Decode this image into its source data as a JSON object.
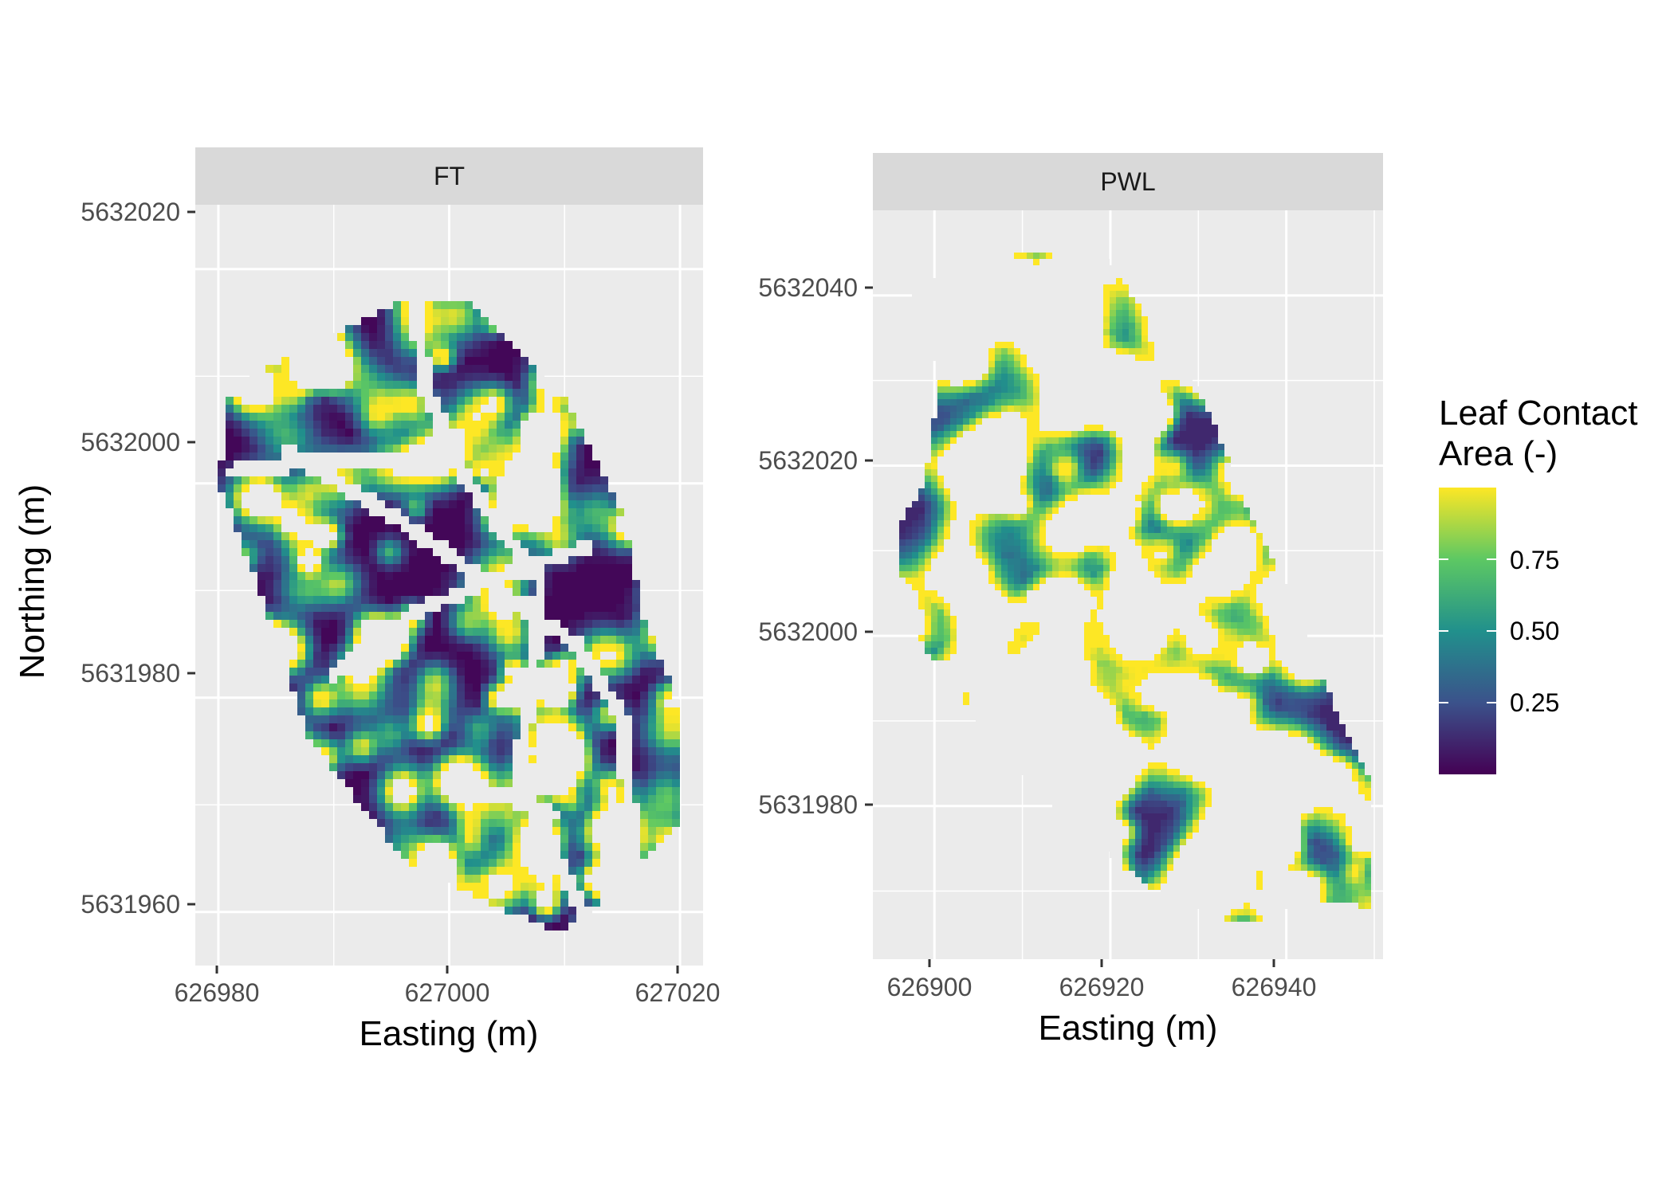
{
  "chart_data": [
    {
      "type": "heatmap",
      "panel": "FT",
      "xlabel": "Easting (m)",
      "ylabel": "Northing (m)",
      "x_ticks": [
        626980,
        627000,
        627020
      ],
      "y_ticks": [
        5631960,
        5631980,
        5632000,
        5632020
      ],
      "xlim": [
        626978,
        627022
      ],
      "ylim": [
        5631955,
        5632026
      ],
      "boundary": [
        [
          626996,
          5632017
        ],
        [
          627002,
          5632017
        ],
        [
          627010,
          5632008
        ],
        [
          627015,
          5631997
        ],
        [
          627017,
          5631987
        ],
        [
          627020,
          5631979
        ],
        [
          627020,
          5631968
        ],
        [
          627016,
          5631964
        ],
        [
          627010,
          5631958
        ],
        [
          627003,
          5631961
        ],
        [
          626996,
          5631965
        ],
        [
          626988,
          5631976
        ],
        [
          626984,
          5631989
        ],
        [
          626980,
          5632000
        ],
        [
          626981,
          5632008
        ],
        [
          626983,
          5632010
        ],
        [
          626988,
          5632013
        ]
      ],
      "paths": [
        [
          [
            626997,
            5632017
          ],
          [
            626998,
            5632009
          ],
          [
            627001,
            5632001
          ],
          [
            627005,
            5631995
          ],
          [
            627008,
            5631991
          ],
          [
            627007,
            5631981
          ],
          [
            627006,
            5631972
          ],
          [
            627012,
            5631959
          ]
        ],
        [
          [
            626981,
            5632001
          ],
          [
            626988,
            5632002
          ],
          [
            626995,
            5632002
          ],
          [
            626998,
            5632003
          ]
        ],
        [
          [
            626986,
            5632003
          ],
          [
            626995,
            5631997
          ],
          [
            627003,
            5631991
          ],
          [
            627011,
            5631985
          ],
          [
            627015,
            5631978
          ],
          [
            627016,
            5631965
          ]
        ],
        [
          [
            626990,
            5631982
          ],
          [
            626997,
            5631988
          ],
          [
            627004,
            5631991
          ],
          [
            627009,
            5631993
          ],
          [
            627012,
            5631994
          ]
        ],
        [
          [
            627002,
            5631972
          ],
          [
            627009,
            5631969
          ]
        ]
      ]
    },
    {
      "type": "heatmap",
      "panel": "PWL",
      "xlabel": "Easting (m)",
      "ylabel": "",
      "x_ticks": [
        626900,
        626920,
        626940
      ],
      "y_ticks": [
        5631980,
        5632000,
        5632020,
        5632040
      ],
      "xlim": [
        626893,
        626951
      ],
      "ylim": [
        5631962,
        5632050
      ],
      "boundary": [
        [
          626901,
          5632043
        ],
        [
          626910,
          5632045
        ],
        [
          626919,
          5632045
        ],
        [
          626924,
          5632038
        ],
        [
          626929,
          5632031
        ],
        [
          626933,
          5632022
        ],
        [
          626936,
          5632014
        ],
        [
          626940,
          5632006
        ],
        [
          626943,
          5631998
        ],
        [
          626947,
          5631988
        ],
        [
          626950,
          5631982
        ],
        [
          626950,
          5631968
        ],
        [
          626944,
          5631969
        ],
        [
          626935,
          5631966
        ],
        [
          626925,
          5631970
        ],
        [
          626915,
          5631978
        ],
        [
          626905,
          5631990
        ],
        [
          626898,
          5632000
        ],
        [
          626896,
          5632008
        ],
        [
          626896,
          5632013
        ],
        [
          626899,
          5632018
        ],
        [
          626900,
          5632026
        ],
        [
          626900,
          5632032
        ],
        [
          626897,
          5632036
        ],
        [
          626897,
          5632040
        ]
      ]
    }
  ],
  "legend": {
    "title_line1": "Leaf Contact",
    "title_line2": "Area (-)",
    "labels": [
      "0.75",
      "0.50",
      "0.25"
    ],
    "values": [
      0.75,
      0.5,
      0.25
    ],
    "range": [
      0,
      1
    ],
    "colors": [
      "#440154",
      "#3b528b",
      "#21908c",
      "#5dc863",
      "#fde725"
    ]
  },
  "colors": {
    "panel_bg": "#ebebeb",
    "strip_bg": "#d9d9d9",
    "grid": "#ffffff",
    "gap": "#ebebeb"
  }
}
